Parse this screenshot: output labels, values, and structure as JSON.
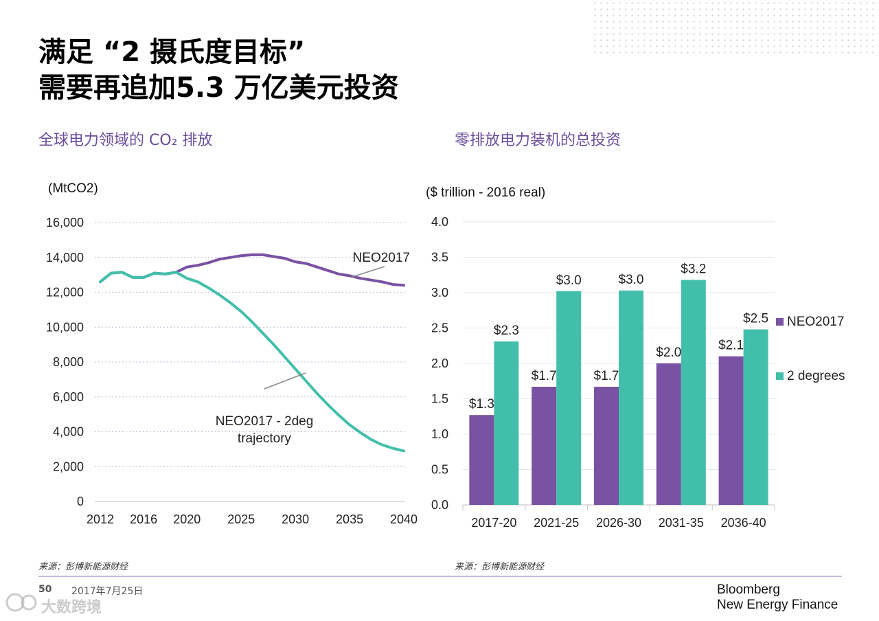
{
  "header": {
    "title_line1": "满足 “2 摄氏度目标”",
    "title_line2": "需要再追加5.3 万亿美元投资"
  },
  "left_panel": {
    "subtitle": "全球电力领域的 CO₂ 排放",
    "unit": "(MtCO2)",
    "source": "来源：彭博新能源财经"
  },
  "right_panel": {
    "subtitle": "零排放电力装机的总投资",
    "unit": "($ trillion - 2016 real)",
    "source": "来源：彭博新能源财经"
  },
  "footer": {
    "page_number": "50",
    "date": "2017年7月25日",
    "brand_line1": "Bloomberg",
    "brand_line2": "New Energy Finance",
    "watermark": "大数跨境"
  },
  "colors": {
    "purple": "#7952a3",
    "teal": "#42bfaa",
    "subtitle": "#6b4c9a"
  },
  "chart_data": [
    {
      "type": "line",
      "ylabel": "(MtCO2)",
      "ylim": [
        0,
        16000
      ],
      "xlim": [
        2012,
        2040
      ],
      "yticks": [
        0,
        2000,
        4000,
        6000,
        8000,
        10000,
        12000,
        14000,
        16000
      ],
      "ytick_labels": [
        "0",
        "2,000",
        "4,000",
        "6,000",
        "8,000",
        "10,000",
        "12,000",
        "14,000",
        "16,000"
      ],
      "xticks": [
        2012,
        2016,
        2020,
        2025,
        2030,
        2035,
        2040
      ],
      "xtick_labels": [
        "2012",
        "2016",
        "2020",
        "2025",
        "2030",
        "2035",
        "2040"
      ],
      "grid": "horizontal dotted",
      "series": [
        {
          "name": "NEO2017",
          "color": "#7952a3",
          "x": [
            2012,
            2013,
            2014,
            2015,
            2016,
            2017,
            2018,
            2019,
            2020,
            2021,
            2022,
            2023,
            2024,
            2025,
            2026,
            2027,
            2028,
            2029,
            2030,
            2031,
            2032,
            2033,
            2034,
            2035,
            2036,
            2037,
            2038,
            2039,
            2040
          ],
          "y": [
            12600,
            13100,
            13150,
            12850,
            12850,
            13100,
            13050,
            13150,
            13450,
            13550,
            13700,
            13900,
            14000,
            14100,
            14150,
            14150,
            14050,
            13950,
            13750,
            13650,
            13450,
            13250,
            13050,
            12950,
            12800,
            12700,
            12600,
            12450,
            12400
          ]
        },
        {
          "name": "NEO2017 - 2deg trajectory",
          "color": "#42bfaa",
          "x": [
            2012,
            2013,
            2014,
            2015,
            2016,
            2017,
            2018,
            2019,
            2020,
            2021,
            2022,
            2023,
            2024,
            2025,
            2026,
            2027,
            2028,
            2029,
            2030,
            2031,
            2032,
            2033,
            2034,
            2035,
            2036,
            2037,
            2038,
            2039,
            2040
          ],
          "y": [
            12600,
            13100,
            13150,
            12850,
            12850,
            13100,
            13050,
            13150,
            12800,
            12600,
            12250,
            11850,
            11400,
            10900,
            10300,
            9650,
            9000,
            8300,
            7600,
            6900,
            6200,
            5550,
            4950,
            4400,
            3950,
            3550,
            3250,
            3050,
            2900
          ]
        }
      ],
      "annotations": [
        {
          "text": "NEO2017",
          "series": "NEO2017"
        },
        {
          "text": "NEO2017 - 2deg",
          "series": "NEO2017 - 2deg trajectory"
        },
        {
          "text": "trajectory",
          "series": "NEO2017 - 2deg trajectory"
        }
      ]
    },
    {
      "type": "bar",
      "ylabel": "($ trillion - 2016 real)",
      "ylim": [
        0,
        4
      ],
      "yticks": [
        0,
        0.5,
        1,
        1.5,
        2,
        2.5,
        3,
        3.5,
        4
      ],
      "ytick_labels": [
        "0.0",
        "0.5",
        "1.0",
        "1.5",
        "2.0",
        "2.5",
        "3.0",
        "3.5",
        "4.0"
      ],
      "categories": [
        "2017-20",
        "2021-25",
        "2026-30",
        "2031-35",
        "2036-40"
      ],
      "legend_position": "right",
      "grid": "horizontal",
      "series": [
        {
          "name": "NEO2017",
          "color": "#7952a3",
          "values": [
            1.27,
            1.67,
            1.67,
            2.0,
            2.1
          ],
          "labels": [
            "$1.3",
            "$1.7",
            "$1.7",
            "$2.0",
            "$2.1"
          ]
        },
        {
          "name": "2 degrees",
          "color": "#42bfaa",
          "values": [
            2.31,
            3.02,
            3.03,
            3.18,
            2.48
          ],
          "labels": [
            "$2.3",
            "$3.0",
            "$3.0",
            "$3.2",
            "$2.5"
          ]
        }
      ]
    }
  ]
}
